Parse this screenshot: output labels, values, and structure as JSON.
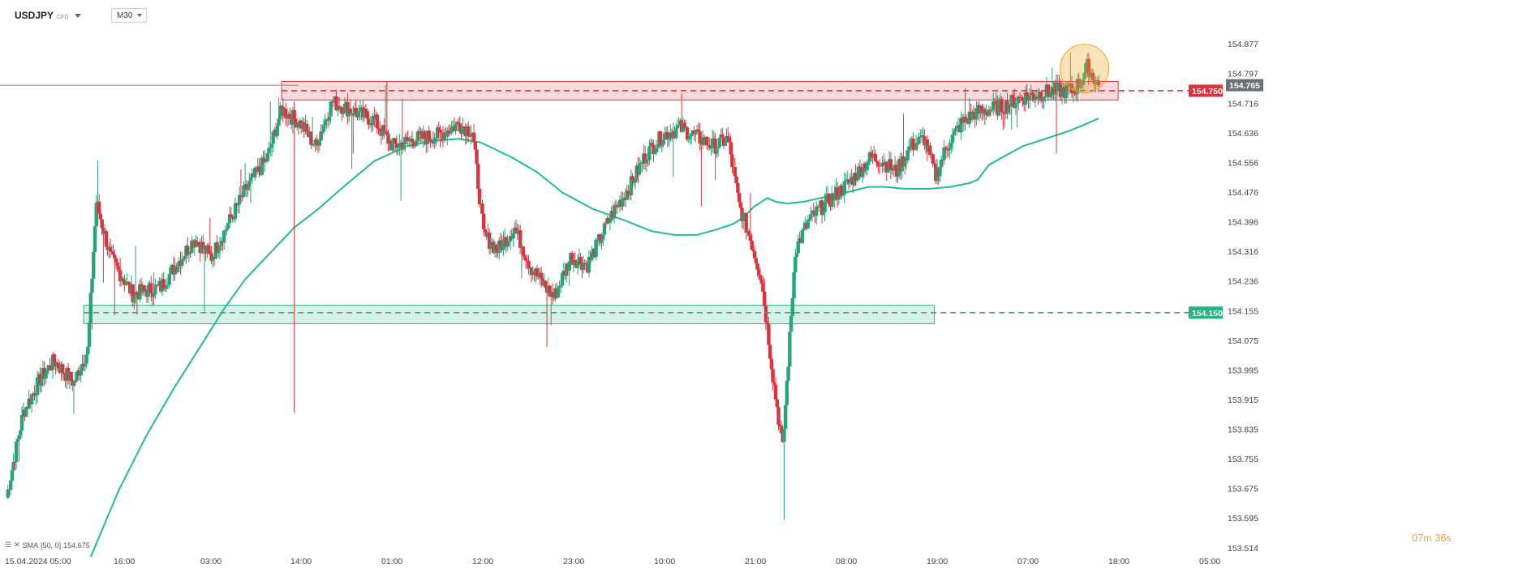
{
  "header": {
    "symbol": "USDJPY",
    "type": "CFD",
    "timeframe": "M30"
  },
  "indicator": {
    "name": "SMA",
    "params": "[50, 0]",
    "value": "154.675"
  },
  "countdown": {
    "minutes": "07",
    "seconds": "36"
  },
  "colors": {
    "up": "#26a57a",
    "down": "#e0323c",
    "sma": "#1fbf88",
    "resistance": "#e0323c",
    "support": "#26b37e",
    "highlight": "#f5a623"
  },
  "chart_data": {
    "type": "candlestick",
    "instrument": "USDJPY",
    "timeframe": "M30",
    "y_ticks": [
      "154.877",
      "154.797",
      "154.716",
      "154.636",
      "154.556",
      "154.476",
      "154.396",
      "154.316",
      "154.236",
      "154.155",
      "154.075",
      "153.995",
      "153.915",
      "153.835",
      "153.755",
      "153.675",
      "153.595",
      "153.514"
    ],
    "x_labels": [
      "15.04.2024  05:00",
      "16:00",
      "03:00",
      "14:00",
      "01:00",
      "12:00",
      "23:00",
      "10:00",
      "21:00",
      "08:00",
      "19:00",
      "07:00",
      "18:00",
      "05:00"
    ],
    "ylim": [
      153.514,
      154.877
    ],
    "current_price": "154.765",
    "levels": [
      {
        "name": "resistance",
        "price": "154.750",
        "color": "#e0323c"
      },
      {
        "name": "support",
        "price": "154.150",
        "color": "#26b37e"
      }
    ],
    "anchors": [
      [
        0,
        153.65
      ],
      [
        12,
        153.88
      ],
      [
        24,
        153.97
      ],
      [
        34,
        154.02
      ],
      [
        48,
        153.96
      ],
      [
        58,
        154.05
      ],
      [
        64,
        154.45
      ],
      [
        74,
        154.3
      ],
      [
        90,
        154.2
      ],
      [
        110,
        154.22
      ],
      [
        134,
        154.35
      ],
      [
        146,
        154.3
      ],
      [
        170,
        154.48
      ],
      [
        186,
        154.57
      ],
      [
        196,
        154.7
      ],
      [
        210,
        154.66
      ],
      [
        220,
        154.6
      ],
      [
        232,
        154.72
      ],
      [
        250,
        154.69
      ],
      [
        262,
        154.67
      ],
      [
        275,
        154.6
      ],
      [
        292,
        154.62
      ],
      [
        308,
        154.63
      ],
      [
        322,
        154.66
      ],
      [
        332,
        154.64
      ],
      [
        340,
        154.36
      ],
      [
        350,
        154.32
      ],
      [
        362,
        154.38
      ],
      [
        374,
        154.27
      ],
      [
        390,
        154.19
      ],
      [
        402,
        154.3
      ],
      [
        414,
        154.28
      ],
      [
        432,
        154.42
      ],
      [
        444,
        154.49
      ],
      [
        456,
        154.58
      ],
      [
        468,
        154.63
      ],
      [
        480,
        154.65
      ],
      [
        494,
        154.62
      ],
      [
        504,
        154.6
      ],
      [
        514,
        154.62
      ],
      [
        522,
        154.44
      ],
      [
        530,
        154.35
      ],
      [
        538,
        154.24
      ],
      [
        546,
        153.98
      ],
      [
        553,
        153.78
      ],
      [
        562,
        154.32
      ],
      [
        572,
        154.4
      ],
      [
        582,
        154.44
      ],
      [
        600,
        154.5
      ],
      [
        616,
        154.57
      ],
      [
        624,
        154.56
      ],
      [
        634,
        154.53
      ],
      [
        644,
        154.6
      ],
      [
        654,
        154.62
      ],
      [
        662,
        154.52
      ],
      [
        670,
        154.6
      ],
      [
        680,
        154.66
      ],
      [
        690,
        154.69
      ],
      [
        702,
        154.7
      ],
      [
        712,
        154.71
      ],
      [
        722,
        154.73
      ],
      [
        734,
        154.74
      ],
      [
        746,
        154.75
      ],
      [
        760,
        154.75
      ],
      [
        766,
        154.78
      ],
      [
        770,
        154.815
      ],
      [
        778,
        154.765
      ]
    ],
    "sma_points": [
      [
        60,
        153.49
      ],
      [
        80,
        153.67
      ],
      [
        100,
        153.82
      ],
      [
        120,
        153.95
      ],
      [
        140,
        154.07
      ],
      [
        155,
        154.16
      ],
      [
        170,
        154.24
      ],
      [
        190,
        154.32
      ],
      [
        205,
        154.38
      ],
      [
        222,
        154.43
      ],
      [
        240,
        154.49
      ],
      [
        262,
        154.56
      ],
      [
        285,
        154.6
      ],
      [
        305,
        154.615
      ],
      [
        322,
        154.62
      ],
      [
        338,
        154.61
      ],
      [
        360,
        154.57
      ],
      [
        378,
        154.53
      ],
      [
        396,
        154.475
      ],
      [
        418,
        154.43
      ],
      [
        440,
        154.4
      ],
      [
        460,
        154.37
      ],
      [
        476,
        154.36
      ],
      [
        492,
        154.36
      ],
      [
        506,
        154.375
      ],
      [
        518,
        154.39
      ],
      [
        526,
        154.41
      ],
      [
        532,
        154.435
      ],
      [
        538,
        154.45
      ],
      [
        542,
        154.46
      ],
      [
        548,
        154.45
      ],
      [
        556,
        154.445
      ],
      [
        568,
        154.45
      ],
      [
        580,
        154.46
      ],
      [
        598,
        154.475
      ],
      [
        614,
        154.49
      ],
      [
        626,
        154.49
      ],
      [
        640,
        154.485
      ],
      [
        658,
        154.485
      ],
      [
        672,
        154.49
      ],
      [
        686,
        154.5
      ],
      [
        692,
        154.51
      ],
      [
        700,
        154.55
      ],
      [
        712,
        154.575
      ],
      [
        724,
        154.6
      ],
      [
        740,
        154.62
      ],
      [
        756,
        154.64
      ],
      [
        766,
        154.655
      ],
      [
        778,
        154.675
      ]
    ],
    "highlight_circle": {
      "price": 154.81
    },
    "grid": false
  }
}
